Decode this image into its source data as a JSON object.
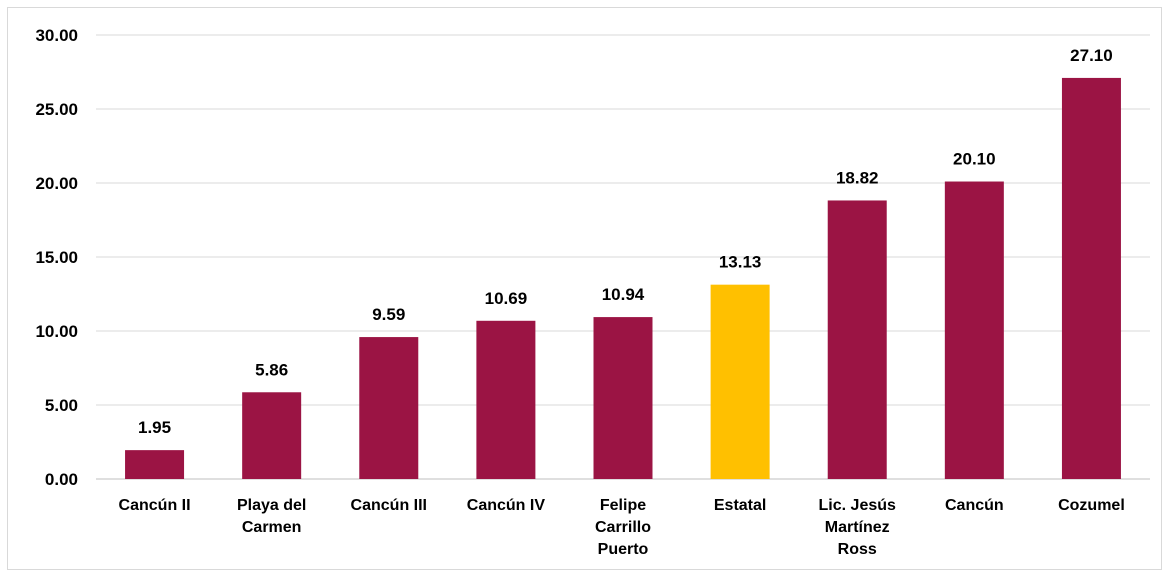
{
  "chart_data": {
    "type": "bar",
    "title": "",
    "xlabel": "",
    "ylabel": "",
    "ylim": [
      0,
      30
    ],
    "yticks": [
      0,
      5,
      10,
      15,
      20,
      25,
      30
    ],
    "ytick_labels": [
      "0.00",
      "5.00",
      "10.00",
      "15.00",
      "20.00",
      "25.00",
      "30.00"
    ],
    "grid": true,
    "legend": "none",
    "categories": [
      "Cancún II",
      "Playa del Carmen",
      "Cancún III",
      "Cancún IV",
      "Felipe Carrillo Puerto",
      "Estatal",
      "Lic. Jesús Martínez Ross",
      "Cancún",
      "Cozumel"
    ],
    "category_lines": [
      [
        "Cancún II"
      ],
      [
        "Playa del",
        "Carmen"
      ],
      [
        "Cancún III"
      ],
      [
        "Cancún IV"
      ],
      [
        "Felipe",
        "Carrillo",
        "Puerto"
      ],
      [
        "Estatal"
      ],
      [
        "Lic. Jesús",
        "Martínez",
        "Ross"
      ],
      [
        "Cancún"
      ],
      [
        "Cozumel"
      ]
    ],
    "values": [
      1.95,
      5.86,
      9.59,
      10.69,
      10.94,
      13.13,
      18.82,
      20.1,
      27.1
    ],
    "value_labels": [
      "1.95",
      "5.86",
      "9.59",
      "10.69",
      "10.94",
      "13.13",
      "18.82",
      "20.10",
      "27.10"
    ],
    "colors": {
      "default": "#9b1444",
      "highlight": "#ffc000",
      "gridline": "#d9d9d9",
      "axis": "#bfbfbf"
    },
    "highlight_index": 5
  }
}
